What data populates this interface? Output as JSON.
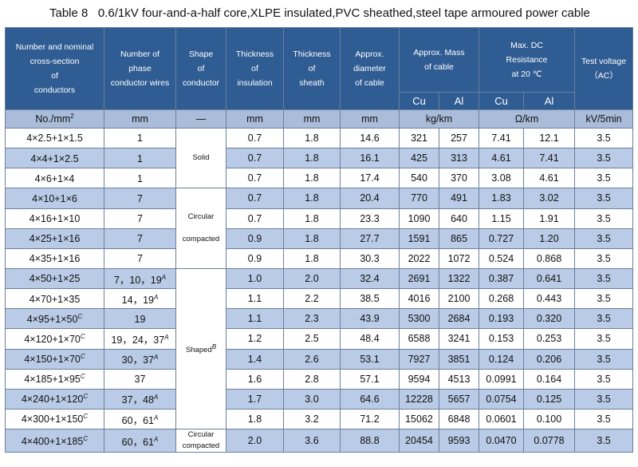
{
  "title": "Table 8   0.6/1kV four-and-a-half core,XLPE insulated,PVC sheathed,steel tape armoured power cable",
  "headers": {
    "conductor": [
      "Number and nominal",
      "cross-section",
      "of",
      "conductors"
    ],
    "wires": [
      "Number of",
      "phase",
      "conductor wires"
    ],
    "shape": [
      "Shape",
      "of",
      "conductor"
    ],
    "insulation": [
      "Thickness",
      "of",
      "insulation"
    ],
    "sheath": [
      "Thickness",
      "of",
      "sheath"
    ],
    "diameter": [
      "Approx.",
      "diameter",
      "of cable"
    ],
    "mass": [
      "Approx. Mass",
      "of cable"
    ],
    "resistance": [
      "Max. DC",
      "Resistance",
      "at 20 ℃"
    ],
    "voltage": [
      "Test voltage",
      "（AC）"
    ],
    "cu": "Cu",
    "al": "Al"
  },
  "units": {
    "conductor": "No./mm",
    "conductor_sup": "2",
    "wires": "mm",
    "shape": "—",
    "insulation": "mm",
    "sheath": "mm",
    "diameter": "mm",
    "mass": "kg/km",
    "resistance": "Ω/km",
    "voltage": "kV/5min"
  },
  "shapes": {
    "solid": "Solid",
    "circular_compacted": [
      "Circular",
      "compacted"
    ],
    "shaped": "Shaped",
    "shaped_sup": "B",
    "last": [
      "Circular",
      "compacted"
    ]
  },
  "rows": [
    {
      "size": "4×2.5+1×1.5",
      "size_sup": "",
      "wires": "1",
      "wires_sup": "",
      "ins": "0.7",
      "sheath": "1.8",
      "dia": "14.6",
      "cu_mass": "321",
      "al_mass": "257",
      "cu_res": "7.41",
      "al_res": "12.1",
      "volt": "3.5"
    },
    {
      "size": "4×4+1×2.5",
      "size_sup": "",
      "wires": "1",
      "wires_sup": "",
      "ins": "0.7",
      "sheath": "1.8",
      "dia": "16.1",
      "cu_mass": "425",
      "al_mass": "313",
      "cu_res": "4.61",
      "al_res": "7.41",
      "volt": "3.5"
    },
    {
      "size": "4×6+1×4",
      "size_sup": "",
      "wires": "1",
      "wires_sup": "",
      "ins": "0.7",
      "sheath": "1.8",
      "dia": "17.4",
      "cu_mass": "540",
      "al_mass": "370",
      "cu_res": "3.08",
      "al_res": "4.61",
      "volt": "3.5"
    },
    {
      "size": "4×10+1×6",
      "size_sup": "",
      "wires": "7",
      "wires_sup": "",
      "ins": "0.7",
      "sheath": "1.8",
      "dia": "20.4",
      "cu_mass": "770",
      "al_mass": "491",
      "cu_res": "1.83",
      "al_res": "3.02",
      "volt": "3.5"
    },
    {
      "size": "4×16+1×10",
      "size_sup": "",
      "wires": "7",
      "wires_sup": "",
      "ins": "0.7",
      "sheath": "1.8",
      "dia": "23.3",
      "cu_mass": "1090",
      "al_mass": "640",
      "cu_res": "1.15",
      "al_res": "1.91",
      "volt": "3.5"
    },
    {
      "size": "4×25+1×16",
      "size_sup": "",
      "wires": "7",
      "wires_sup": "",
      "ins": "0.9",
      "sheath": "1.8",
      "dia": "27.7",
      "cu_mass": "1591",
      "al_mass": "865",
      "cu_res": "0.727",
      "al_res": "1.20",
      "volt": "3.5"
    },
    {
      "size": "4×35+1×16",
      "size_sup": "",
      "wires": "7",
      "wires_sup": "",
      "ins": "0.9",
      "sheath": "1.8",
      "dia": "30.3",
      "cu_mass": "2022",
      "al_mass": "1072",
      "cu_res": "0.524",
      "al_res": "0.868",
      "volt": "3.5"
    },
    {
      "size": "4×50+1×25",
      "size_sup": "",
      "wires": "7，10，19",
      "wires_sup": "A",
      "ins": "1.0",
      "sheath": "2.0",
      "dia": "32.4",
      "cu_mass": "2691",
      "al_mass": "1322",
      "cu_res": "0.387",
      "al_res": "0.641",
      "volt": "3.5"
    },
    {
      "size": "4×70+1×35",
      "size_sup": "",
      "wires": "14，19",
      "wires_sup": "A",
      "ins": "1.1",
      "sheath": "2.2",
      "dia": "38.5",
      "cu_mass": "4016",
      "al_mass": "2100",
      "cu_res": "0.268",
      "al_res": "0.443",
      "volt": "3.5"
    },
    {
      "size": "4×95+1×50",
      "size_sup": "C",
      "wires": "19",
      "wires_sup": "",
      "ins": "1.1",
      "sheath": "2.3",
      "dia": "43.9",
      "cu_mass": "5300",
      "al_mass": "2684",
      "cu_res": "0.193",
      "al_res": "0.320",
      "volt": "3.5"
    },
    {
      "size": "4×120+1×70",
      "size_sup": "C",
      "wires": "19，24，37",
      "wires_sup": "A",
      "ins": "1.2",
      "sheath": "2.5",
      "dia": "48.4",
      "cu_mass": "6588",
      "al_mass": "3241",
      "cu_res": "0.153",
      "al_res": "0.253",
      "volt": "3.5"
    },
    {
      "size": "4×150+1×70",
      "size_sup": "C",
      "wires": "30，37",
      "wires_sup": "A",
      "ins": "1.4",
      "sheath": "2.6",
      "dia": "53.1",
      "cu_mass": "7927",
      "al_mass": "3851",
      "cu_res": "0.124",
      "al_res": "0.206",
      "volt": "3.5"
    },
    {
      "size": "4×185+1×95",
      "size_sup": "C",
      "wires": "37",
      "wires_sup": "",
      "ins": "1.6",
      "sheath": "2.8",
      "dia": "57.1",
      "cu_mass": "9594",
      "al_mass": "4513",
      "cu_res": "0.0991",
      "al_res": "0.164",
      "volt": "3.5"
    },
    {
      "size": "4×240+1×120",
      "size_sup": "C",
      "wires": "37，48",
      "wires_sup": "A",
      "ins": "1.7",
      "sheath": "3.0",
      "dia": "64.6",
      "cu_mass": "12228",
      "al_mass": "5657",
      "cu_res": "0.0754",
      "al_res": "0.125",
      "volt": "3.5"
    },
    {
      "size": "4×300+1×150",
      "size_sup": "C",
      "wires": "60，61",
      "wires_sup": "A",
      "ins": "1.8",
      "sheath": "3.2",
      "dia": "71.2",
      "cu_mass": "15062",
      "al_mass": "6848",
      "cu_res": "0.0601",
      "al_res": "0.100",
      "volt": "3.5"
    },
    {
      "size": "4×400+1×185",
      "size_sup": "C",
      "wires": "60，61",
      "wires_sup": "A",
      "ins": "2.0",
      "sheath": "3.6",
      "dia": "88.8",
      "cu_mass": "20454",
      "al_mass": "9593",
      "cu_res": "0.0470",
      "al_res": "0.0778",
      "volt": "3.5"
    }
  ]
}
